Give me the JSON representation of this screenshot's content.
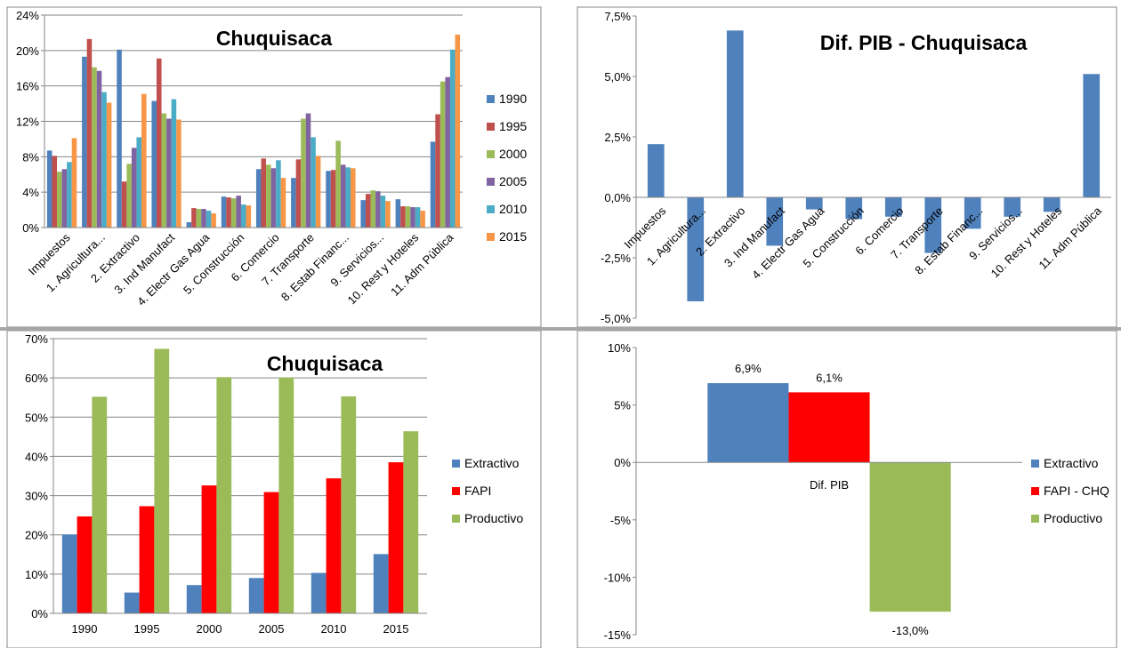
{
  "chart_data": [
    {
      "type": "bar",
      "title": "Chuquisaca",
      "categories": [
        "Impuestos",
        "1. Agricultura...",
        "2. Extractivo",
        "3. Ind Manufact",
        "4. Electr Gas Agua",
        "5. Construcción",
        "6. Comercio",
        "7. Transporte",
        "8. Estab Financ...",
        "9. Servicios...",
        "10. Rest y Hoteles",
        "11. Adm Pública"
      ],
      "series": [
        {
          "name": "1990",
          "color": "#4f81bd",
          "values": [
            8.7,
            19.3,
            20.1,
            14.3,
            0.6,
            3.5,
            6.6,
            5.6,
            6.4,
            3.1,
            3.2,
            9.7
          ]
        },
        {
          "name": "1995",
          "color": "#c0504d",
          "values": [
            8.1,
            21.3,
            5.2,
            19.1,
            2.2,
            3.4,
            7.8,
            7.7,
            6.5,
            3.8,
            2.4,
            12.8
          ]
        },
        {
          "name": "2000",
          "color": "#9bbb59",
          "values": [
            6.3,
            18.1,
            7.2,
            12.9,
            2.1,
            3.3,
            7.1,
            12.3,
            9.8,
            4.2,
            2.4,
            16.5
          ]
        },
        {
          "name": "2005",
          "color": "#8064a2",
          "values": [
            6.6,
            17.7,
            9.0,
            12.3,
            2.1,
            3.6,
            6.7,
            12.9,
            7.1,
            4.1,
            2.3,
            17.0
          ]
        },
        {
          "name": "2010",
          "color": "#4bacc6",
          "values": [
            7.4,
            15.3,
            10.2,
            14.5,
            1.9,
            2.6,
            7.6,
            10.2,
            6.8,
            3.6,
            2.3,
            20.1
          ]
        },
        {
          "name": "2015",
          "color": "#f79646",
          "values": [
            10.1,
            14.1,
            15.1,
            12.2,
            1.6,
            2.5,
            5.6,
            8.1,
            6.7,
            3.0,
            1.9,
            21.8
          ]
        }
      ],
      "yticks": [
        "0%",
        "4%",
        "8%",
        "12%",
        "16%",
        "20%",
        "24%"
      ],
      "ylim": [
        0,
        24
      ],
      "legend_position": "right",
      "grid": true
    },
    {
      "type": "bar",
      "title": "Dif. PIB - Chuquisaca",
      "categories": [
        "Impuestos",
        "1. Agricultura...",
        "2. Extractivo",
        "3. Ind Manufact",
        "4. Electr Gas Agua",
        "5. Construcción",
        "6. Comercio",
        "7. Transporte",
        "8. Estab Financ...",
        "9. Servicios...",
        "10. Rest y Hoteles",
        "11. Adm Pública"
      ],
      "series": [
        {
          "color": "#4f81bd",
          "values": [
            2.2,
            -4.3,
            6.9,
            -2.0,
            -0.5,
            -0.9,
            -0.8,
            -2.3,
            -1.3,
            -0.8,
            -0.6,
            5.1
          ]
        }
      ],
      "yticks": [
        "-5,0%",
        "-2,5%",
        "0,0%",
        "2,5%",
        "5,0%",
        "7,5%"
      ],
      "ylim": [
        -5,
        7.5
      ],
      "grid": false
    },
    {
      "type": "bar",
      "title": "Chuquisaca",
      "categories": [
        "1990",
        "1995",
        "2000",
        "2005",
        "2010",
        "2015"
      ],
      "series": [
        {
          "name": "Extractivo",
          "color": "#4f81bd",
          "values": [
            20.1,
            5.3,
            7.2,
            9.0,
            10.3,
            15.1
          ]
        },
        {
          "name": "FAPI",
          "color": "#ff0000",
          "values": [
            24.7,
            27.3,
            32.6,
            30.9,
            34.4,
            38.5
          ]
        },
        {
          "name": "Productivo",
          "color": "#9bbb59",
          "values": [
            55.2,
            67.4,
            60.2,
            60.1,
            55.3,
            46.4
          ]
        }
      ],
      "yticks": [
        "0%",
        "10%",
        "20%",
        "30%",
        "40%",
        "50%",
        "60%",
        "70%"
      ],
      "ylim": [
        0,
        70
      ],
      "legend_position": "right",
      "grid": true
    },
    {
      "type": "bar",
      "categories": [
        "Dif. PIB"
      ],
      "series": [
        {
          "name": "Extractivo",
          "color": "#4f81bd",
          "values": [
            6.9
          ],
          "label": "6,9%"
        },
        {
          "name": "FAPI - CHQ",
          "color": "#ff0000",
          "values": [
            6.1
          ],
          "label": "6,1%"
        },
        {
          "name": "Productivo",
          "color": "#9bbb59",
          "values": [
            -13.0
          ],
          "label": "-13,0%"
        }
      ],
      "yticks": [
        "-15%",
        "-10%",
        "-5%",
        "0%",
        "5%",
        "10%"
      ],
      "ylim": [
        -15,
        10
      ],
      "legend_position": "right",
      "grid": false
    }
  ]
}
